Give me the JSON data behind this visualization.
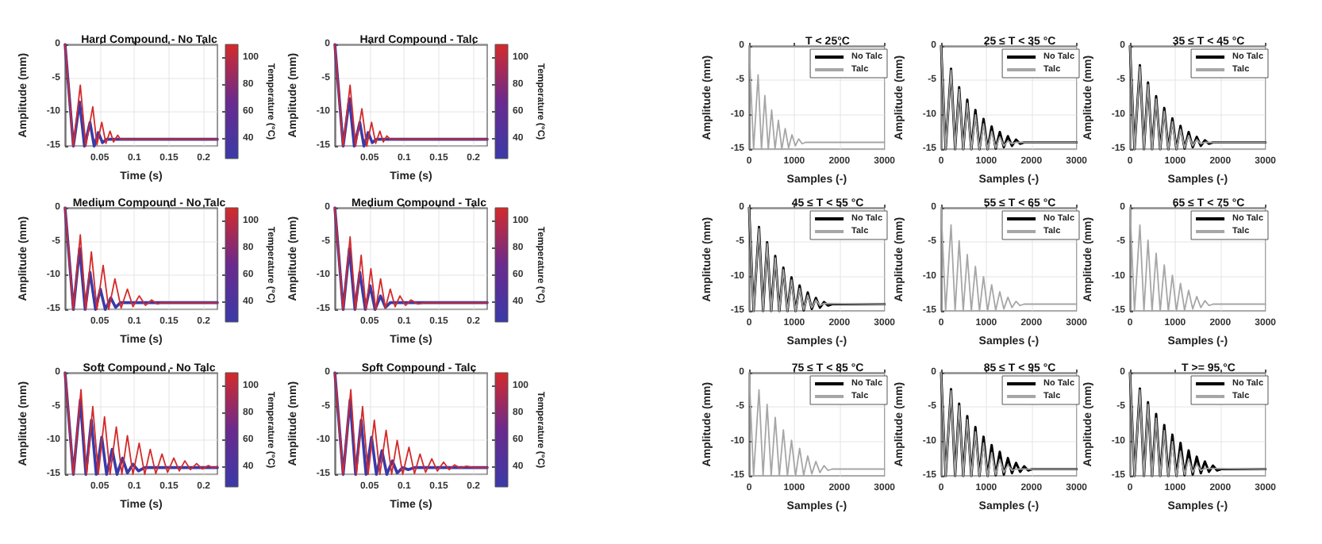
{
  "chart_data": [
    {
      "type": "line",
      "title": "Hard Compound - No Talc",
      "xlabel": "Time (s)",
      "ylabel": "Amplitude (mm)",
      "xlim": [
        0,
        0.22
      ],
      "xticks": [
        0.05,
        0.1,
        0.15,
        0.2
      ],
      "ylim": [
        -15,
        0
      ],
      "yticks": [
        -15,
        -10,
        -5,
        0
      ],
      "grid": true,
      "clabel": "Temperature (°C)",
      "clim": [
        25,
        110
      ],
      "cticks": [
        40,
        60,
        80,
        100
      ],
      "series": [
        {
          "color": "#3a3aa8",
          "x": [
            0,
            0.012,
            0.021,
            0.028,
            0.036,
            0.042,
            0.048,
            0.054,
            0.06,
            0.22
          ],
          "values": [
            0,
            -15,
            -8.5,
            -15,
            -11.5,
            -15,
            -13,
            -14.5,
            -14,
            -14
          ]
        },
        {
          "color": "#d42a2a",
          "x": [
            0,
            0.012,
            0.022,
            0.03,
            0.04,
            0.046,
            0.053,
            0.059,
            0.065,
            0.07,
            0.076,
            0.08,
            0.22
          ],
          "values": [
            0,
            -15,
            -6,
            -15,
            -9.2,
            -14.8,
            -11.5,
            -14.6,
            -12.8,
            -14.4,
            -13.4,
            -14,
            -14
          ]
        }
      ]
    },
    {
      "type": "line",
      "title": "Hard Compound - Talc",
      "xlabel": "Time (s)",
      "ylabel": "Amplitude (mm)",
      "xlim": [
        0,
        0.22
      ],
      "xticks": [
        0.05,
        0.1,
        0.15,
        0.2
      ],
      "ylim": [
        -15,
        0
      ],
      "yticks": [
        -15,
        -10,
        -5,
        0
      ],
      "grid": true,
      "clabel": "Temperature (°C)",
      "clim": [
        25,
        110
      ],
      "cticks": [
        40,
        60,
        80,
        100
      ],
      "series": [
        {
          "color": "#3a3aa8",
          "x": [
            0,
            0.012,
            0.021,
            0.028,
            0.036,
            0.042,
            0.048,
            0.054,
            0.06,
            0.22
          ],
          "values": [
            0,
            -15,
            -8,
            -15,
            -11.5,
            -15,
            -13,
            -14.5,
            -14,
            -14
          ]
        },
        {
          "color": "#d42a2a",
          "x": [
            0,
            0.012,
            0.022,
            0.03,
            0.039,
            0.046,
            0.053,
            0.059,
            0.065,
            0.07,
            0.075,
            0.08,
            0.22
          ],
          "values": [
            0,
            -15,
            -6,
            -15,
            -9.5,
            -15,
            -11.5,
            -14.6,
            -12.8,
            -14.4,
            -13.5,
            -14,
            -14
          ]
        }
      ]
    },
    {
      "type": "line",
      "title": "Medium Compound - No Talc",
      "xlabel": "Time (s)",
      "ylabel": "Amplitude (mm)",
      "xlim": [
        0,
        0.22
      ],
      "xticks": [
        0.05,
        0.1,
        0.15,
        0.2
      ],
      "ylim": [
        -15,
        0
      ],
      "yticks": [
        -15,
        -10,
        -5,
        0
      ],
      "grid": true,
      "clabel": "Temperature (°C)",
      "clim": [
        25,
        110
      ],
      "cticks": [
        40,
        60,
        80,
        100
      ],
      "series": [
        {
          "color": "#3a3aa8",
          "x": [
            0,
            0.012,
            0.021,
            0.029,
            0.036,
            0.044,
            0.051,
            0.058,
            0.066,
            0.073,
            0.08,
            0.22
          ],
          "values": [
            0,
            -15,
            -6,
            -15,
            -9.5,
            -15,
            -12,
            -15,
            -13.3,
            -14.7,
            -14,
            -14
          ]
        },
        {
          "color": "#d42a2a",
          "x": [
            0,
            0.012,
            0.022,
            0.03,
            0.038,
            0.046,
            0.055,
            0.063,
            0.072,
            0.081,
            0.09,
            0.098,
            0.107,
            0.116,
            0.125,
            0.133,
            0.14,
            0.22
          ],
          "values": [
            0,
            -15,
            -4,
            -15,
            -6.5,
            -15,
            -8.5,
            -15,
            -10.5,
            -14.8,
            -12,
            -14.6,
            -13,
            -14.4,
            -13.6,
            -14.2,
            -14,
            -14
          ]
        }
      ]
    },
    {
      "type": "line",
      "title": "Medium Compound - Talc",
      "xlabel": "Time (s)",
      "ylabel": "Amplitude (mm)",
      "xlim": [
        0,
        0.22
      ],
      "xticks": [
        0.05,
        0.1,
        0.15,
        0.2
      ],
      "ylim": [
        -15,
        0
      ],
      "yticks": [
        -15,
        -10,
        -5,
        0
      ],
      "grid": true,
      "clabel": "Temperature (°C)",
      "clim": [
        25,
        110
      ],
      "cticks": [
        40,
        60,
        80,
        100
      ],
      "series": [
        {
          "color": "#3a3aa8",
          "x": [
            0,
            0.012,
            0.021,
            0.029,
            0.036,
            0.044,
            0.051,
            0.058,
            0.066,
            0.073,
            0.08,
            0.22
          ],
          "values": [
            0,
            -15,
            -6,
            -15,
            -9.5,
            -15,
            -11.5,
            -15,
            -13,
            -14.7,
            -14,
            -14
          ]
        },
        {
          "color": "#d42a2a",
          "x": [
            0,
            0.012,
            0.022,
            0.03,
            0.038,
            0.045,
            0.052,
            0.059,
            0.066,
            0.073,
            0.08,
            0.087,
            0.094,
            0.102,
            0.11,
            0.12,
            0.13,
            0.22
          ],
          "values": [
            0,
            -15,
            -4.3,
            -15,
            -7,
            -15,
            -9,
            -15,
            -10.5,
            -14.8,
            -12,
            -14.6,
            -13,
            -14.4,
            -13.6,
            -14.2,
            -14,
            -14
          ]
        }
      ]
    },
    {
      "type": "line",
      "title": "Soft Compound - No Talc",
      "xlabel": "Time (s)",
      "ylabel": "Amplitude (mm)",
      "xlim": [
        0,
        0.22
      ],
      "xticks": [
        0.05,
        0.1,
        0.15,
        0.2
      ],
      "ylim": [
        -15,
        0
      ],
      "yticks": [
        -15,
        -10,
        -5,
        0
      ],
      "grid": true,
      "clabel": "Temperature (°C)",
      "clim": [
        25,
        110
      ],
      "cticks": [
        40,
        60,
        80,
        100
      ],
      "series": [
        {
          "color": "#3a3aa8",
          "x": [
            0,
            0.012,
            0.022,
            0.03,
            0.038,
            0.045,
            0.053,
            0.06,
            0.068,
            0.075,
            0.083,
            0.09,
            0.098,
            0.106,
            0.115,
            0.22
          ],
          "values": [
            0,
            -15,
            -4,
            -15,
            -7,
            -15,
            -9.5,
            -15,
            -11.3,
            -15,
            -12.6,
            -14.8,
            -13.5,
            -14.5,
            -14,
            -14
          ]
        },
        {
          "color": "#d42a2a",
          "x": [
            0,
            0.012,
            0.023,
            0.031,
            0.04,
            0.048,
            0.057,
            0.065,
            0.074,
            0.082,
            0.09,
            0.098,
            0.107,
            0.115,
            0.123,
            0.131,
            0.14,
            0.148,
            0.157,
            0.165,
            0.173,
            0.181,
            0.19,
            0.198,
            0.207,
            0.214,
            0.22
          ],
          "values": [
            0,
            -15,
            -2.5,
            -15,
            -5,
            -15,
            -6.5,
            -15,
            -8,
            -15,
            -9.3,
            -15,
            -10.4,
            -15,
            -11.3,
            -14.9,
            -12,
            -14.7,
            -12.6,
            -14.5,
            -13,
            -14.3,
            -13.4,
            -14.2,
            -13.7,
            -14.1,
            -13.8
          ]
        }
      ]
    },
    {
      "type": "line",
      "title": "Soft Compound - Talc",
      "xlabel": "Time (s)",
      "ylabel": "Amplitude (mm)",
      "xlim": [
        0,
        0.22
      ],
      "xticks": [
        0.05,
        0.1,
        0.15,
        0.2
      ],
      "ylim": [
        -15,
        0
      ],
      "yticks": [
        -15,
        -10,
        -5,
        0
      ],
      "grid": true,
      "clabel": "Temperature (°C)",
      "clim": [
        25,
        110
      ],
      "cticks": [
        40,
        60,
        80,
        100
      ],
      "series": [
        {
          "color": "#3a3aa8",
          "x": [
            0,
            0.012,
            0.022,
            0.03,
            0.038,
            0.045,
            0.053,
            0.06,
            0.068,
            0.075,
            0.083,
            0.09,
            0.098,
            0.106,
            0.115,
            0.22
          ],
          "values": [
            0,
            -15,
            -4,
            -15,
            -7,
            -15,
            -9.5,
            -15,
            -11.5,
            -15,
            -13,
            -14.8,
            -14,
            -14.3,
            -14,
            -14
          ]
        },
        {
          "color": "#d42a2a",
          "x": [
            0,
            0.012,
            0.023,
            0.031,
            0.04,
            0.048,
            0.057,
            0.065,
            0.074,
            0.082,
            0.09,
            0.098,
            0.107,
            0.115,
            0.123,
            0.131,
            0.14,
            0.148,
            0.157,
            0.165,
            0.173,
            0.181,
            0.19,
            0.2,
            0.22
          ],
          "values": [
            0,
            -15,
            -2.5,
            -15,
            -5,
            -15,
            -7,
            -15,
            -8.5,
            -15,
            -10,
            -15,
            -11,
            -14.9,
            -12,
            -14.7,
            -12.7,
            -14.5,
            -13.2,
            -14.3,
            -13.6,
            -14.1,
            -13.8,
            -14,
            -14
          ]
        }
      ]
    },
    {
      "type": "line",
      "title": "T < 25°C",
      "xlabel": "Samples (-)",
      "ylabel": "Amplitude (mm)",
      "xlim": [
        0,
        3000
      ],
      "xticks": [
        0,
        1000,
        2000,
        3000
      ],
      "ylim": [
        -15,
        0
      ],
      "yticks": [
        -15,
        -10,
        -5,
        0
      ],
      "grid": true,
      "legend": "top right",
      "series": [
        {
          "name": "No Talc",
          "color": "#000000"
        },
        {
          "name": "Talc",
          "color": "#a6a6a6",
          "x": [
            0,
            100,
            200,
            275,
            350,
            425,
            500,
            575,
            650,
            725,
            800,
            875,
            950,
            1025,
            1100,
            1175,
            1250,
            3000
          ],
          "values": [
            0,
            -15,
            -4.2,
            -15,
            -7.2,
            -15,
            -9.3,
            -15,
            -10.8,
            -15,
            -12,
            -14.8,
            -12.9,
            -14.5,
            -13.5,
            -14.2,
            -14,
            -14
          ]
        }
      ]
    },
    {
      "type": "line",
      "title": "25 ≤ T < 35 °C",
      "xlabel": "Samples (-)",
      "ylabel": "Amplitude (mm)",
      "xlim": [
        0,
        3000
      ],
      "xticks": [
        0,
        1000,
        2000,
        3000
      ],
      "ylim": [
        -15,
        0
      ],
      "yticks": [
        -15,
        -10,
        -5,
        0
      ],
      "grid": true,
      "legend": "top right",
      "series": [
        {
          "name": "No Talc",
          "color": "#000000",
          "x": [
            0,
            100,
            220,
            310,
            400,
            490,
            580,
            670,
            760,
            850,
            940,
            1030,
            1120,
            1210,
            1300,
            1390,
            1480,
            1570,
            1660,
            1750,
            1840,
            3000
          ],
          "values": [
            0,
            -15,
            -3.3,
            -15,
            -6,
            -15,
            -7.8,
            -15,
            -9.3,
            -15,
            -10.6,
            -15,
            -11.7,
            -14.9,
            -12.5,
            -14.7,
            -13.1,
            -14.5,
            -13.6,
            -14.2,
            -14,
            -14
          ]
        },
        {
          "name": "Talc",
          "color": "#a6a6a6",
          "x": [
            0,
            100,
            220,
            310,
            400,
            490,
            580,
            670,
            760,
            850,
            940,
            1030,
            1120,
            1210,
            1300,
            1390,
            1480,
            1570,
            1660,
            3000
          ],
          "values": [
            0,
            -15,
            -3.5,
            -15,
            -6.3,
            -15,
            -8.3,
            -15,
            -10,
            -15,
            -11.3,
            -15,
            -12.4,
            -14.8,
            -13.2,
            -14.5,
            -13.8,
            -14.2,
            -14,
            -14
          ]
        }
      ]
    },
    {
      "type": "line",
      "title": "35 ≤ T < 45 °C",
      "xlabel": "Samples (-)",
      "ylabel": "Amplitude (mm)",
      "xlim": [
        0,
        3000
      ],
      "xticks": [
        0,
        1000,
        2000,
        3000
      ],
      "ylim": [
        -15,
        0
      ],
      "yticks": [
        -15,
        -10,
        -5,
        0
      ],
      "grid": true,
      "legend": "top right",
      "series": [
        {
          "name": "No Talc",
          "color": "#000000",
          "x": [
            0,
            100,
            220,
            310,
            400,
            490,
            580,
            670,
            760,
            850,
            940,
            1030,
            1120,
            1210,
            1300,
            1390,
            1480,
            1570,
            1660,
            1750,
            1840,
            3000
          ],
          "values": [
            0,
            -15,
            -2.8,
            -15,
            -5.3,
            -15,
            -7.3,
            -15,
            -9,
            -15,
            -10.5,
            -15,
            -11.6,
            -14.9,
            -12.5,
            -14.7,
            -13.2,
            -14.5,
            -13.7,
            -14.2,
            -14,
            -14
          ]
        },
        {
          "name": "Talc",
          "color": "#a6a6a6",
          "x": [
            0,
            100,
            220,
            310,
            400,
            490,
            580,
            670,
            760,
            850,
            940,
            1030,
            1120,
            1210,
            1300,
            1390,
            1480,
            1570,
            1660,
            3000
          ],
          "values": [
            0,
            -15,
            -3,
            -15,
            -5.6,
            -15,
            -7.7,
            -15,
            -9.5,
            -15,
            -11,
            -15,
            -12.1,
            -14.8,
            -13,
            -14.5,
            -13.6,
            -14.2,
            -14,
            -14
          ]
        }
      ]
    },
    {
      "type": "line",
      "title": "45 ≤ T < 55 °C",
      "xlabel": "Samples (-)",
      "ylabel": "Amplitude (mm)",
      "xlim": [
        0,
        3000
      ],
      "xticks": [
        0,
        1000,
        2000,
        3000
      ],
      "ylim": [
        -15,
        0
      ],
      "yticks": [
        -15,
        -10,
        -5,
        0
      ],
      "grid": true,
      "legend": "top right",
      "series": [
        {
          "name": "No Talc",
          "color": "#000000",
          "x": [
            0,
            100,
            220,
            310,
            400,
            490,
            580,
            670,
            760,
            850,
            940,
            1030,
            1120,
            1210,
            1300,
            1390,
            1480,
            1570,
            1660,
            1750,
            1840,
            3000
          ],
          "values": [
            0,
            -15,
            -2.8,
            -15,
            -5,
            -15,
            -7,
            -15,
            -8.7,
            -15,
            -10.1,
            -15,
            -11.3,
            -14.9,
            -12.3,
            -14.7,
            -13.1,
            -14.5,
            -13.7,
            -14.2,
            -14,
            -14
          ]
        },
        {
          "name": "Talc",
          "color": "#a6a6a6",
          "x": [
            0,
            100,
            220,
            310,
            400,
            490,
            580,
            670,
            760,
            850,
            940,
            1030,
            1120,
            1210,
            1300,
            1390,
            1480,
            1570,
            1660,
            3000
          ],
          "values": [
            0,
            -15,
            -3,
            -15,
            -5.2,
            -15,
            -7.3,
            -15,
            -9,
            -15,
            -10.5,
            -15,
            -11.7,
            -14.8,
            -12.7,
            -14.5,
            -13.4,
            -14.2,
            -13.9,
            -14
          ]
        }
      ]
    },
    {
      "type": "line",
      "title": "55 ≤ T < 65 °C",
      "xlabel": "Samples (-)",
      "ylabel": "Amplitude (mm)",
      "xlim": [
        0,
        3000
      ],
      "xticks": [
        0,
        1000,
        2000,
        3000
      ],
      "ylim": [
        -15,
        0
      ],
      "yticks": [
        -15,
        -10,
        -5,
        0
      ],
      "grid": true,
      "legend": "top right",
      "series": [
        {
          "name": "No Talc",
          "color": "#000000"
        },
        {
          "name": "Talc",
          "color": "#a6a6a6",
          "x": [
            0,
            100,
            220,
            310,
            400,
            490,
            580,
            670,
            760,
            850,
            940,
            1030,
            1120,
            1210,
            1300,
            1390,
            1480,
            1570,
            1660,
            1750,
            1840,
            3000
          ],
          "values": [
            0,
            -15,
            -2.5,
            -15,
            -4.8,
            -15,
            -6.8,
            -15,
            -8.5,
            -15,
            -10,
            -15,
            -11.2,
            -14.9,
            -12.2,
            -14.7,
            -13,
            -14.5,
            -13.6,
            -14.2,
            -14,
            -14
          ]
        }
      ]
    },
    {
      "type": "line",
      "title": "65 ≤ T < 75 °C",
      "xlabel": "Samples (-)",
      "ylabel": "Amplitude (mm)",
      "xlim": [
        0,
        3000
      ],
      "xticks": [
        0,
        1000,
        2000,
        3000
      ],
      "ylim": [
        -15,
        0
      ],
      "yticks": [
        -15,
        -10,
        -5,
        0
      ],
      "grid": true,
      "legend": "top right",
      "series": [
        {
          "name": "No Talc",
          "color": "#000000"
        },
        {
          "name": "Talc",
          "color": "#a6a6a6",
          "x": [
            0,
            100,
            220,
            310,
            400,
            490,
            580,
            670,
            760,
            850,
            940,
            1030,
            1120,
            1210,
            1300,
            1390,
            1480,
            1570,
            1660,
            1750,
            1840,
            3000
          ],
          "values": [
            0,
            -15,
            -2.5,
            -15,
            -4.7,
            -15,
            -6.6,
            -15,
            -8.3,
            -15,
            -9.8,
            -15,
            -11,
            -14.9,
            -12,
            -14.7,
            -12.9,
            -14.5,
            -13.5,
            -14.2,
            -14,
            -14
          ]
        }
      ]
    },
    {
      "type": "line",
      "title": "75 ≤ T < 85 °C",
      "xlabel": "Samples (-)",
      "ylabel": "Amplitude (mm)",
      "xlim": [
        0,
        3000
      ],
      "xticks": [
        0,
        1000,
        2000,
        3000
      ],
      "ylim": [
        -15,
        0
      ],
      "yticks": [
        -15,
        -10,
        -5,
        0
      ],
      "grid": true,
      "legend": "top right",
      "series": [
        {
          "name": "No Talc",
          "color": "#000000"
        },
        {
          "name": "Talc",
          "color": "#a6a6a6",
          "x": [
            0,
            100,
            220,
            310,
            400,
            490,
            580,
            670,
            760,
            850,
            940,
            1030,
            1120,
            1210,
            1300,
            1390,
            1480,
            1570,
            1660,
            1750,
            1840,
            3000
          ],
          "values": [
            0,
            -15,
            -2.5,
            -15,
            -4.6,
            -15,
            -6.5,
            -15,
            -8.3,
            -15,
            -9.8,
            -15,
            -11,
            -14.9,
            -12.1,
            -14.7,
            -12.9,
            -14.5,
            -13.5,
            -14.2,
            -14,
            -14
          ]
        }
      ]
    },
    {
      "type": "line",
      "title": "85 ≤ T < 95 °C",
      "xlabel": "Samples (-)",
      "ylabel": "Amplitude (mm)",
      "xlim": [
        0,
        3000
      ],
      "xticks": [
        0,
        1000,
        2000,
        3000
      ],
      "ylim": [
        -15,
        0
      ],
      "yticks": [
        -15,
        -10,
        -5,
        0
      ],
      "grid": true,
      "legend": "top right",
      "series": [
        {
          "name": "No Talc",
          "color": "#000000",
          "x": [
            0,
            100,
            220,
            310,
            400,
            490,
            580,
            670,
            760,
            850,
            940,
            1030,
            1120,
            1210,
            1300,
            1390,
            1480,
            1570,
            1660,
            1750,
            1840,
            1930,
            2020,
            3000
          ],
          "values": [
            0,
            -15,
            -2.4,
            -15,
            -4.5,
            -15,
            -6.3,
            -15,
            -7.9,
            -15,
            -9.3,
            -15,
            -10.5,
            -14.9,
            -11.5,
            -14.8,
            -12.4,
            -14.6,
            -13.1,
            -14.4,
            -13.6,
            -14.2,
            -14,
            -14
          ]
        },
        {
          "name": "Talc",
          "color": "#a6a6a6",
          "x": [
            0,
            100,
            220,
            310,
            400,
            490,
            580,
            670,
            760,
            850,
            940,
            1030,
            1120,
            1210,
            1300,
            1390,
            1480,
            1570,
            1660,
            3000
          ],
          "values": [
            0,
            -15,
            -2.6,
            -15,
            -4.8,
            -15,
            -6.8,
            -15,
            -8.6,
            -15,
            -10.2,
            -15,
            -11.6,
            -14.8,
            -12.6,
            -14.5,
            -13.4,
            -14.2,
            -14,
            -14
          ]
        }
      ]
    },
    {
      "type": "line",
      "title": "T >= 95 °C",
      "xlabel": "Samples (-)",
      "ylabel": "Amplitude (mm)",
      "xlim": [
        0,
        3000
      ],
      "xticks": [
        0,
        1000,
        2000,
        3000
      ],
      "ylim": [
        -15,
        0
      ],
      "yticks": [
        -15,
        -10,
        -5,
        0
      ],
      "grid": true,
      "legend": "top right",
      "series": [
        {
          "name": "No Talc",
          "color": "#000000",
          "x": [
            0,
            100,
            220,
            310,
            400,
            490,
            580,
            670,
            760,
            850,
            940,
            1030,
            1120,
            1210,
            1300,
            1390,
            1480,
            1570,
            1660,
            1750,
            1840,
            1930,
            2020,
            3000
          ],
          "values": [
            0,
            -15,
            -2.3,
            -15,
            -4.3,
            -15,
            -6,
            -15,
            -7.6,
            -15,
            -9,
            -15,
            -10.2,
            -14.9,
            -11.3,
            -14.8,
            -12.2,
            -14.6,
            -12.9,
            -14.4,
            -13.5,
            -14.2,
            -14,
            -14
          ]
        },
        {
          "name": "Talc",
          "color": "#a6a6a6",
          "x": [
            0,
            100,
            220,
            310,
            400,
            490,
            580,
            670,
            760,
            850,
            940,
            1030,
            1120,
            1210,
            1300,
            1390,
            1480,
            1570,
            1660,
            3000
          ],
          "values": [
            0,
            -15,
            -2.5,
            -15,
            -4.6,
            -15,
            -6.6,
            -15,
            -8.4,
            -15,
            -10,
            -15,
            -11.4,
            -14.8,
            -12.5,
            -14.5,
            -13.3,
            -14.2,
            -13.9,
            -14
          ]
        }
      ]
    }
  ]
}
